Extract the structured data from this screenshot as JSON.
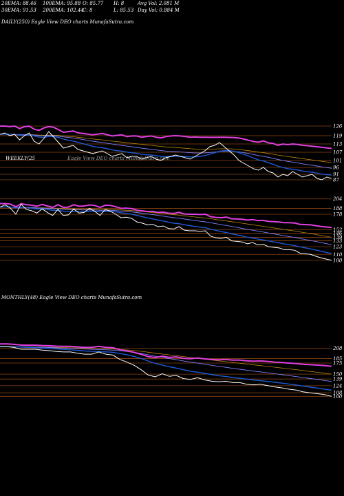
{
  "header": {
    "row1": [
      {
        "text": "20EMA: 88.46"
      },
      {
        "text": "100EMA: 95.88"
      },
      {
        "text": "O: 85.77"
      },
      {
        "text": "H: 8"
      },
      {
        "text": "Avg Vol: 2.081 M"
      }
    ],
    "row2": [
      {
        "text": "30EMA: 91.53"
      },
      {
        "text": "200EMA: 102.44"
      },
      {
        "text": "C: 8"
      },
      {
        "text": "L: 85.53"
      },
      {
        "text": "Day Vol: 0.884  M"
      }
    ]
  },
  "panels": [
    {
      "label": "DAILY(250) Eagle   View  DEO charts  MunafaSutra.com",
      "ticks": [
        "126",
        "119",
        "113",
        "107",
        "101",
        "96",
        "91",
        "87"
      ],
      "tick_values": [
        126,
        119,
        113,
        107,
        101,
        96,
        91,
        87
      ],
      "ylim": [
        80,
        130
      ]
    },
    {
      "label": "WEEKLY(25",
      "ticks": [
        "204",
        "188",
        "178",
        "152",
        "146",
        "139",
        "133",
        "123",
        "110",
        "100"
      ],
      "tick_values": [
        204,
        188,
        178,
        152,
        146,
        139,
        133,
        123,
        110,
        100
      ],
      "ylim": [
        80,
        220
      ]
    },
    {
      "label": "MONTHLY(48) Eagle   View  DEO charts  MunafaSutra.com",
      "ticks": [
        "208",
        "185",
        "175",
        "150",
        "139",
        "124",
        "108",
        "100"
      ],
      "tick_values": [
        208,
        185,
        175,
        150,
        139,
        124,
        108,
        100
      ],
      "ylim": [
        85,
        220
      ]
    }
  ],
  "watermark": "Eagle   View  DEO charts  MunafaSutra.com",
  "colors": {
    "background": "#000000",
    "price": "#ffffff",
    "ema_short": "#1e5bd6",
    "ema_mid": "#8080ff",
    "ema_long": "#e040e0",
    "ema_orange": "#b8860b",
    "grid": "#8b4513"
  },
  "chart_data": [
    {
      "type": "line",
      "title": "DAILY(250)",
      "series": [
        {
          "name": "",
          "values": [
            120,
            121,
            119,
            120,
            116,
            119,
            121,
            115,
            113,
            117,
            122,
            118,
            114,
            110,
            111,
            112,
            109,
            108,
            107,
            106,
            107,
            108,
            106,
            104,
            105,
            106,
            103,
            104,
            104,
            102,
            103,
            104,
            102,
            101,
            103,
            104,
            105,
            104,
            103,
            102,
            104,
            106,
            108,
            111,
            112,
            114,
            111,
            108,
            105,
            101,
            99,
            97,
            95,
            94,
            96,
            93,
            92,
            89,
            91,
            90,
            93,
            91,
            89,
            90,
            91,
            88,
            87,
            89,
            88
          ]
        }
      ]
    },
    {
      "type": "line",
      "title": "WEEKLY(25",
      "series": [
        {
          "name": "",
          "values": [
            190,
            194,
            188,
            178,
            195,
            186,
            184,
            180,
            187,
            181,
            176,
            186,
            176,
            177,
            187,
            180,
            181,
            188,
            183,
            176,
            186,
            183,
            178,
            172,
            173,
            171,
            165,
            163,
            160,
            161,
            157,
            158,
            154,
            153,
            157,
            151,
            150,
            150,
            149,
            150,
            141,
            138,
            137,
            139,
            133,
            132,
            131,
            128,
            130,
            126,
            127,
            123,
            122,
            121,
            118,
            118,
            117,
            112,
            111,
            110,
            107,
            104,
            102,
            100
          ]
        }
      ]
    },
    {
      "type": "line",
      "title": "MONTHLY(48)",
      "series": [
        {
          "name": "",
          "values": [
            212,
            212,
            210,
            206,
            206,
            206,
            204,
            203,
            201,
            200,
            200,
            197,
            195,
            195,
            200,
            195,
            193,
            183,
            177,
            170,
            160,
            148,
            144,
            151,
            145,
            147,
            140,
            138,
            142,
            137,
            134,
            133,
            134,
            131,
            131,
            127,
            126,
            127,
            124,
            121,
            119,
            116,
            114,
            110,
            108,
            106,
            104,
            100
          ]
        }
      ]
    }
  ]
}
